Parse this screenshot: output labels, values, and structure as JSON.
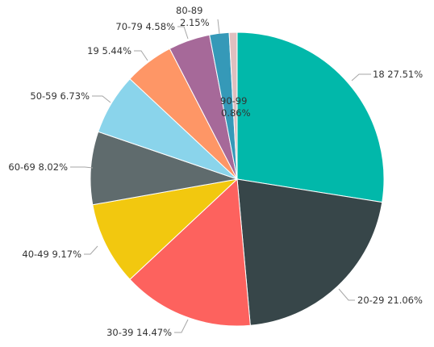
{
  "chart_data": {
    "type": "pie",
    "title": "",
    "slices": [
      {
        "category": "18",
        "percent": 27.51,
        "label": "18 27.51%",
        "color": "#01b8aa"
      },
      {
        "category": "20-29",
        "percent": 21.06,
        "label": "20-29 21.06%",
        "color": "#374649"
      },
      {
        "category": "30-39",
        "percent": 14.47,
        "label": "30-39 14.47%",
        "color": "#fd625e"
      },
      {
        "category": "40-49",
        "percent": 9.17,
        "label": "40-49 9.17%",
        "color": "#f2c80f"
      },
      {
        "category": "60-69",
        "percent": 8.02,
        "label": "60-69 8.02%",
        "color": "#5f6b6d"
      },
      {
        "category": "50-59",
        "percent": 6.73,
        "label": "50-59 6.73%",
        "color": "#8ad4eb"
      },
      {
        "category": "19",
        "percent": 5.44,
        "label": "19 5.44%",
        "color": "#fe9666"
      },
      {
        "category": "70-79",
        "percent": 4.58,
        "label": "70-79 4.58%",
        "color": "#a66999"
      },
      {
        "category": "80-89",
        "percent": 2.15,
        "label_lines": [
          "80-89",
          "2.15%"
        ],
        "color": "#3599b8"
      },
      {
        "category": "90-99",
        "percent": 0.86,
        "label_lines": [
          "90-99",
          "0.86%"
        ],
        "color": "#dfbfbf"
      }
    ]
  }
}
